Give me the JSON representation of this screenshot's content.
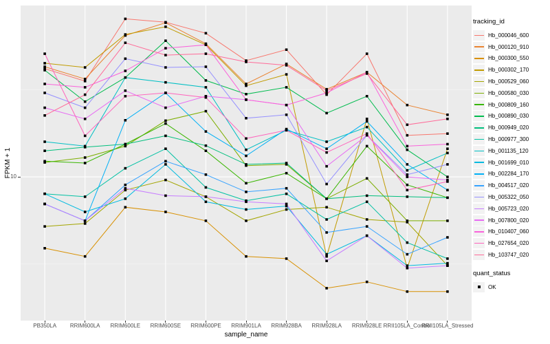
{
  "figure": {
    "y_axis": {
      "title": "FPKM + 1",
      "tick_labels": [
        "10"
      ]
    },
    "x_axis": {
      "title": "sample_name"
    },
    "legends": {
      "tracking": {
        "title": "tracking_id"
      },
      "quant": {
        "title": "quant_status",
        "items": [
          "OK"
        ]
      }
    },
    "colors": {
      "panel_bg": "#EBEBEB",
      "grid": "#FFFFFF",
      "legend_key_bg": "#F2F2F2",
      "point": "#000000",
      "tick_label": "#4D4D4D",
      "text": "#000000"
    }
  },
  "chart_data": {
    "type": "line",
    "title": "",
    "xlabel": "sample_name",
    "ylabel": "FPKM + 1",
    "x_scale": "categorical",
    "y_scale": "log10",
    "y_breaks": [
      10
    ],
    "y_minor_breaks": [
      3.162,
      31.62
    ],
    "ylim": [
      1.5,
      96
    ],
    "grid": "major",
    "legend_position": "right",
    "marker": "black-filled-square",
    "point_legend": {
      "title": "quant_status",
      "label": "OK"
    },
    "categories": [
      "PB350LA",
      "RRIM600LA",
      "RRIM600LE",
      "RRIM600SE",
      "RRIM600PE",
      "RRIM901LA",
      "RRIM928BA",
      "RRIM928LA",
      "RRIM928LE",
      "RRII105LA_Control",
      "RRII105LA_Stressed"
    ],
    "series": [
      {
        "name": "Hb_000046_600",
        "color": "#F8766D",
        "values": [
          41.7,
          35.4,
          80.5,
          77.0,
          66.6,
          46.4,
          53.6,
          29.6,
          50.8,
          17.3,
          17.7
        ]
      },
      {
        "name": "Hb_000120_910",
        "color": "#EA8331",
        "values": [
          42.8,
          36.4,
          64.6,
          76.5,
          58.0,
          34.1,
          44.4,
          31.8,
          39.8,
          25.8,
          22.7
        ]
      },
      {
        "name": "Hb_000300_550",
        "color": "#D89000",
        "values": [
          3.9,
          3.5,
          6.7,
          6.3,
          5.6,
          3.5,
          3.4,
          2.3,
          2.5,
          2.2,
          2.2
        ]
      },
      {
        "name": "Hb_000302_170",
        "color": "#C09B00",
        "values": [
          44.8,
          42.4,
          65.5,
          72.5,
          57.1,
          33.3,
          38.7,
          3.5,
          21.5,
          3.0,
          14.5
        ]
      },
      {
        "name": "Hb_000529_060",
        "color": "#A3A500",
        "values": [
          5.2,
          5.4,
          8.4,
          9.6,
          7.7,
          5.6,
          6.5,
          6.7,
          5.7,
          5.5,
          3.1
        ]
      },
      {
        "name": "Hb_000580_030",
        "color": "#7CAE00",
        "values": [
          12.1,
          12.9,
          15.0,
          21.0,
          23.8,
          11.6,
          11.8,
          7.5,
          9.8,
          5.6,
          5.6
        ]
      },
      {
        "name": "Hb_000809_160",
        "color": "#39B600",
        "values": [
          12.3,
          12.0,
          15.4,
          20.2,
          14.1,
          9.2,
          10.5,
          7.5,
          15.0,
          9.0,
          7.6
        ]
      },
      {
        "name": "Hb_000890_030",
        "color": "#00BB4E",
        "values": [
          40.9,
          27.0,
          37.1,
          60.3,
          35.7,
          29.8,
          32.6,
          23.2,
          29.0,
          14.3,
          10.0
        ]
      },
      {
        "name": "Hb_000949_020",
        "color": "#00BF7D",
        "values": [
          14.1,
          14.8,
          15.4,
          17.2,
          15.1,
          11.8,
          12.0,
          7.5,
          7.8,
          7.7,
          7.6
        ]
      },
      {
        "name": "Hb_000977_300",
        "color": "#00C1A3",
        "values": [
          8.0,
          7.7,
          11.2,
          14.5,
          8.7,
          7.3,
          8.0,
          5.7,
          7.2,
          4.2,
          3.4
        ]
      },
      {
        "name": "Hb_001135_120",
        "color": "#00BFC4",
        "values": [
          15.9,
          15.0,
          37.1,
          34.8,
          32.6,
          14.3,
          18.5,
          15.9,
          19.3,
          10.9,
          13.7
        ]
      },
      {
        "name": "Hb_001699_010",
        "color": "#00BAE0",
        "values": [
          8.0,
          6.3,
          7.5,
          11.8,
          7.2,
          6.5,
          6.8,
          3.6,
          4.6,
          3.1,
          3.2
        ]
      },
      {
        "name": "Hb_002284_170",
        "color": "#00B0F6",
        "values": [
          7.0,
          5.6,
          21.1,
          30.3,
          18.2,
          13.2,
          18.8,
          14.5,
          20.8,
          11.8,
          8.4
        ]
      },
      {
        "name": "Hb_004517_020",
        "color": "#35A2FF",
        "values": [
          7.0,
          5.6,
          9.0,
          12.3,
          10.3,
          8.2,
          8.6,
          4.8,
          5.2,
          3.6,
          4.5
        ]
      },
      {
        "name": "Hb_005322_050",
        "color": "#9590FF",
        "values": [
          30.3,
          24.9,
          47.6,
          42.4,
          42.8,
          21.7,
          22.7,
          9.1,
          17.3,
          10.3,
          11.8
        ]
      },
      {
        "name": "Hb_005723_020",
        "color": "#C77CFF",
        "values": [
          7.0,
          5.6,
          8.6,
          7.8,
          7.7,
          7.2,
          7.0,
          3.3,
          4.6,
          3.0,
          3.1
        ]
      },
      {
        "name": "Hb_007800_020",
        "color": "#E76BF3",
        "values": [
          24.9,
          21.5,
          31.2,
          24.9,
          29.0,
          27.7,
          25.8,
          11.5,
          17.3,
          10.0,
          9.6
        ]
      },
      {
        "name": "Hb_010407_060",
        "color": "#FA62DB",
        "values": [
          34.1,
          32.6,
          40.5,
          54.6,
          57.1,
          27.7,
          25.8,
          30.3,
          39.8,
          15.0,
          15.4
        ]
      },
      {
        "name": "Hb_027654_020",
        "color": "#FF62BC",
        "values": [
          50.8,
          17.2,
          29.0,
          30.3,
          28.5,
          16.6,
          18.5,
          13.8,
          17.7,
          8.4,
          9.4
        ]
      },
      {
        "name": "Hb_103747_020",
        "color": "#FF6A98",
        "values": [
          22.5,
          29.6,
          58.7,
          49.9,
          50.8,
          45.6,
          43.6,
          31.2,
          39.1,
          19.9,
          21.5
        ]
      }
    ]
  }
}
